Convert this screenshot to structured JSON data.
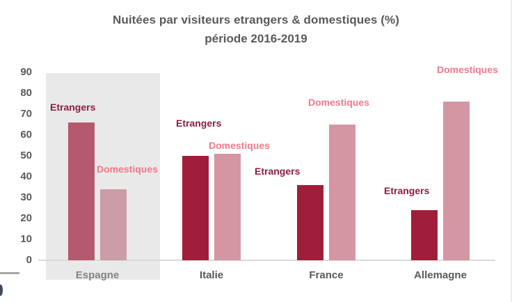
{
  "chart_data": {
    "type": "bar",
    "title": "Nuitées par visiteurs etrangers & domestiques (%)",
    "subtitle": "période 2016-2019",
    "categories": [
      "Espagne",
      "Italie",
      "France",
      "Allemagne"
    ],
    "series": [
      {
        "name": "Etrangers",
        "values": [
          66,
          50,
          36,
          24
        ]
      },
      {
        "name": "Domestiques",
        "values": [
          34,
          51,
          65,
          76
        ]
      }
    ],
    "ylim": [
      0,
      90
    ],
    "yticks": [
      0,
      10,
      20,
      30,
      40,
      50,
      60,
      70,
      80,
      90
    ],
    "grid": false,
    "legend_position": "labels-near-bars",
    "highlighted_category": "Espagne"
  },
  "colors": {
    "bar_etrangers": "#A01E39",
    "bar_domestiques": "#D596A4",
    "bar_etrangers_highlighted": "#B55A6E",
    "bar_domestiques_highlighted": "#CC9CA8",
    "label_etrangers": "#8B1E3F",
    "label_domestiques": "#F2798A",
    "text_gray": "#595959",
    "category_highlighted_text": "#838383",
    "highlight_box": "#E9E9E9",
    "axis_line": "#D9D9D9"
  }
}
